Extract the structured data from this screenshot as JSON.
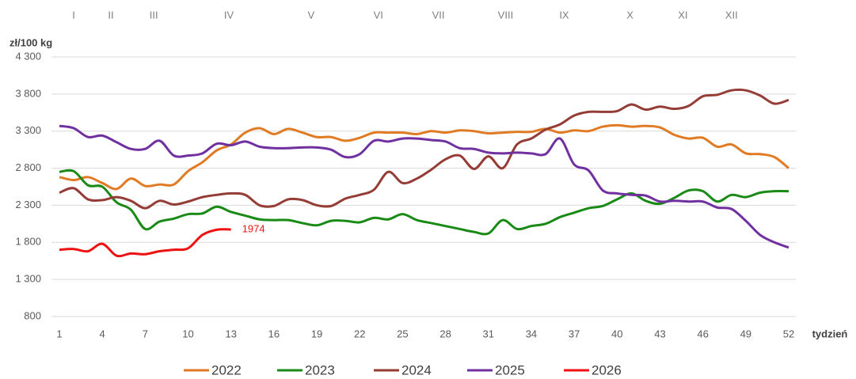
{
  "chart_data": {
    "type": "line",
    "y_axis_label": "zł/100 kg",
    "x_axis_label": "tydzień",
    "month_labels": [
      "I",
      "II",
      "III",
      "IV",
      "V",
      "VI",
      "VII",
      "VIII",
      "IX",
      "X",
      "XI",
      "XII"
    ],
    "month_weeks": [
      2.0,
      4.6,
      7.6,
      12.85,
      18.6,
      23.3,
      27.5,
      32.2,
      36.3,
      40.9,
      44.6,
      48.0
    ],
    "x": [
      1,
      2,
      3,
      4,
      5,
      6,
      7,
      8,
      9,
      10,
      11,
      12,
      13,
      14,
      15,
      16,
      17,
      18,
      19,
      20,
      21,
      22,
      23,
      24,
      25,
      26,
      27,
      28,
      29,
      30,
      31,
      32,
      33,
      34,
      35,
      36,
      37,
      38,
      39,
      40,
      41,
      42,
      43,
      44,
      45,
      46,
      47,
      48,
      49,
      50,
      51,
      52
    ],
    "xlim": [
      1,
      52
    ],
    "xticks": [
      1,
      4,
      7,
      10,
      13,
      16,
      19,
      22,
      25,
      28,
      31,
      34,
      37,
      40,
      43,
      46,
      49,
      52
    ],
    "ylim": [
      800,
      4300
    ],
    "yticks": [
      800,
      {
        "value": 1300,
        "label": "1 300"
      },
      {
        "value": 1800,
        "label": "1 800"
      },
      {
        "value": 2300,
        "label": "2 300"
      },
      {
        "value": 2800,
        "label": "2 800"
      },
      {
        "value": 3300,
        "label": "3 300"
      },
      {
        "value": 3800,
        "label": "3 800"
      },
      {
        "value": 4300,
        "label": "4 300"
      }
    ],
    "grid": true,
    "legend": "bottom",
    "series": [
      {
        "name": "2022",
        "color": "#e07b24",
        "values": [
          2680,
          2640,
          2680,
          2600,
          2520,
          2660,
          2560,
          2580,
          2580,
          2760,
          2880,
          3040,
          3120,
          3280,
          3340,
          3260,
          3330,
          3280,
          3220,
          3220,
          3170,
          3210,
          3280,
          3280,
          3280,
          3260,
          3300,
          3280,
          3310,
          3300,
          3270,
          3280,
          3290,
          3290,
          3330,
          3280,
          3310,
          3300,
          3360,
          3380,
          3360,
          3370,
          3350,
          3250,
          3200,
          3210,
          3090,
          3120,
          3000,
          2990,
          2950,
          2800
        ]
      },
      {
        "name": "2023",
        "color": "#1a8a16",
        "values": [
          2750,
          2760,
          2570,
          2550,
          2340,
          2240,
          1980,
          2080,
          2120,
          2180,
          2190,
          2280,
          2210,
          2160,
          2110,
          2100,
          2100,
          2060,
          2030,
          2090,
          2090,
          2070,
          2130,
          2110,
          2180,
          2100,
          2060,
          2020,
          1980,
          1940,
          1920,
          2100,
          1980,
          2020,
          2050,
          2140,
          2200,
          2260,
          2290,
          2380,
          2460,
          2360,
          2320,
          2400,
          2500,
          2490,
          2350,
          2440,
          2410,
          2470,
          2490,
          2490
        ]
      },
      {
        "name": "2024",
        "color": "#943c35",
        "values": [
          2470,
          2530,
          2380,
          2370,
          2410,
          2360,
          2260,
          2360,
          2310,
          2350,
          2410,
          2440,
          2460,
          2440,
          2300,
          2290,
          2380,
          2370,
          2300,
          2290,
          2390,
          2440,
          2510,
          2750,
          2600,
          2660,
          2780,
          2920,
          2970,
          2790,
          2960,
          2800,
          3120,
          3200,
          3320,
          3390,
          3510,
          3560,
          3560,
          3570,
          3660,
          3590,
          3630,
          3600,
          3640,
          3770,
          3790,
          3850,
          3850,
          3780,
          3670,
          3720
        ]
      },
      {
        "name": "2025",
        "color": "#7030a0",
        "values": [
          3370,
          3340,
          3220,
          3240,
          3150,
          3060,
          3060,
          3170,
          2970,
          2970,
          3000,
          3130,
          3110,
          3160,
          3090,
          3070,
          3070,
          3080,
          3080,
          3050,
          2950,
          2990,
          3170,
          3160,
          3200,
          3200,
          3180,
          3160,
          3070,
          3060,
          3010,
          3000,
          3010,
          3000,
          2990,
          3200,
          2850,
          2770,
          2500,
          2460,
          2440,
          2430,
          2350,
          2360,
          2350,
          2350,
          2270,
          2250,
          2090,
          1900,
          1800,
          1730
        ]
      },
      {
        "name": "2026",
        "color": "#ee1111",
        "values": [
          1700,
          1710,
          1680,
          1780,
          1620,
          1650,
          1640,
          1680,
          1700,
          1720,
          1900,
          1970,
          1974,
          null,
          null,
          null,
          null,
          null,
          null,
          null,
          null,
          null,
          null,
          null,
          null,
          null,
          null,
          null,
          null,
          null,
          null,
          null,
          null,
          null,
          null,
          null,
          null,
          null,
          null,
          null,
          null,
          null,
          null,
          null,
          null,
          null,
          null,
          null,
          null,
          null,
          null,
          null
        ]
      }
    ]
  }
}
